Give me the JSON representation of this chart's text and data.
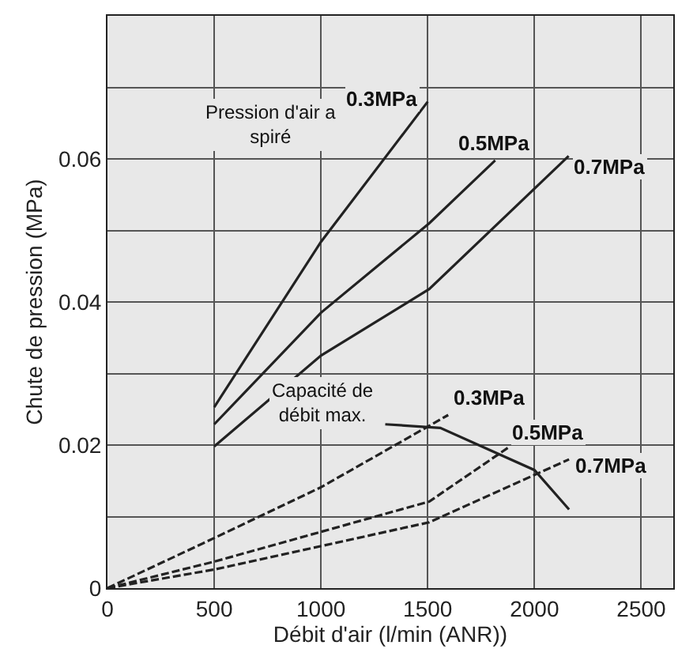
{
  "chart_data": {
    "type": "line",
    "xlabel": "Débit d'air (l/min (ANR))",
    "ylabel": "Chute de pression (MPa)",
    "xlim": [
      0,
      2650
    ],
    "xticks": [
      0,
      500,
      1000,
      1500,
      2000,
      2500
    ],
    "ylim": [
      0,
      0.08
    ],
    "yticks": [
      0,
      {
        "value": 0.01,
        "label": null
      },
      0.02,
      {
        "value": 0.03,
        "label": null
      },
      0.04,
      {
        "value": 0.05,
        "label": null
      },
      0.06,
      {
        "value": 0.07,
        "label": null
      }
    ],
    "grid": true,
    "marker": "none",
    "series": [
      {
        "color": "#222222",
        "line_style": "solid",
        "x": [
          500,
          1000,
          1500
        ],
        "values": [
          0.0253,
          0.0484,
          0.068
        ]
      },
      {
        "color": "#222222",
        "line_style": "solid",
        "x": [
          500,
          1000,
          1507,
          1816
        ],
        "values": [
          0.0229,
          0.0385,
          0.051,
          0.0598
        ]
      },
      {
        "color": "#222222",
        "line_style": "solid",
        "x": [
          500,
          1000,
          1507,
          2160
        ],
        "values": [
          0.0198,
          0.0325,
          0.0418,
          0.0604
        ]
      },
      {
        "color": "#222222",
        "line_style": "dashed",
        "x": [
          0,
          500,
          1000,
          1596
        ],
        "values": [
          0,
          0.007,
          0.0141,
          0.0242
        ]
      },
      {
        "color": "#222222",
        "line_style": "dashed",
        "x": [
          0,
          500,
          1507,
          1875
        ],
        "values": [
          0,
          0.0037,
          0.0121,
          0.0196
        ]
      },
      {
        "color": "#222222",
        "line_style": "dashed",
        "x": [
          0,
          500,
          1507,
          2162
        ],
        "values": [
          0,
          0.0026,
          0.0092,
          0.018
        ]
      },
      {
        "color": "#222222",
        "line_style": "solid",
        "x": [
          1301,
          1559,
          2000,
          2162
        ],
        "values": [
          0.0229,
          0.0224,
          0.0165,
          0.011
        ]
      }
    ],
    "annotations": [
      "Pression d'air a\nspiré",
      {
        "text": "0.3MPa",
        "x": 1500,
        "y": 0.068
      },
      {
        "text": "0.5MPa",
        "x": 1816,
        "y": 0.0598
      },
      {
        "text": "0.7MPa",
        "x": 2160,
        "y": 0.0604
      },
      "Capacité de\ndébit max.",
      {
        "text": "0.3MPa",
        "x": 1596,
        "y": 0.0242
      },
      {
        "text": "0.5MPa",
        "x": 1875,
        "y": 0.0196
      },
      {
        "text": "0.7MPa",
        "x": 2162,
        "y": 0.018
      }
    ]
  }
}
